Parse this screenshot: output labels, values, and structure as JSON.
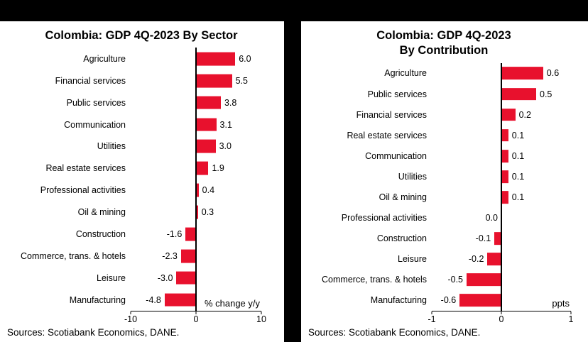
{
  "page": {
    "background": "#000000",
    "panel_background": "#ffffff",
    "bar_color": "#e8112d",
    "text_color": "#000000"
  },
  "chart_data": [
    {
      "type": "bar",
      "orientation": "horizontal",
      "title": "Colombia: GDP 4Q-2023 By Sector",
      "categories": [
        "Agriculture",
        "Financial services",
        "Public services",
        "Communication",
        "Utilities",
        "Real estate services",
        "Professional activities",
        "Oil & mining",
        "Construction",
        "Commerce, trans. & hotels",
        "Leisure",
        "Manufacturing"
      ],
      "values": [
        6.0,
        5.5,
        3.8,
        3.1,
        3.0,
        1.9,
        0.4,
        0.3,
        -1.6,
        -2.3,
        -3.0,
        -4.8
      ],
      "value_labels": [
        "6.0",
        "5.5",
        "3.8",
        "3.1",
        "3.0",
        "1.9",
        "0.4",
        "0.3",
        "-1.6",
        "-2.3",
        "-3.0",
        "-4.8"
      ],
      "xlim": [
        -10,
        10
      ],
      "xticks": [
        "-10",
        "0",
        "10"
      ],
      "unit_label": "% change y/y",
      "source": "Sources: Scotiabank Economics, DANE.",
      "bar_color": "#e8112d",
      "legend": "none",
      "grid": "none"
    },
    {
      "type": "bar",
      "orientation": "horizontal",
      "title": "Colombia: GDP 4Q-2023\nBy Contribution",
      "categories": [
        "Agriculture",
        "Public services",
        "Financial services",
        "Real estate services",
        "Communication",
        "Utilities",
        "Oil & mining",
        "Professional activities",
        "Construction",
        "Leisure",
        "Commerce, trans. & hotels",
        "Manufacturing"
      ],
      "values": [
        0.6,
        0.5,
        0.2,
        0.1,
        0.1,
        0.1,
        0.1,
        0.0,
        -0.1,
        -0.2,
        -0.5,
        -0.6
      ],
      "value_labels": [
        "0.6",
        "0.5",
        "0.2",
        "0.1",
        "0.1",
        "0.1",
        "0.1",
        "0.0",
        "-0.1",
        "-0.2",
        "-0.5",
        "-0.6"
      ],
      "xlim": [
        -1,
        1
      ],
      "xticks": [
        "-1",
        "0",
        "1"
      ],
      "unit_label": "ppts",
      "source": "Sources: Scotiabank Economics, DANE.",
      "bar_color": "#e8112d",
      "legend": "none",
      "grid": "none"
    }
  ]
}
